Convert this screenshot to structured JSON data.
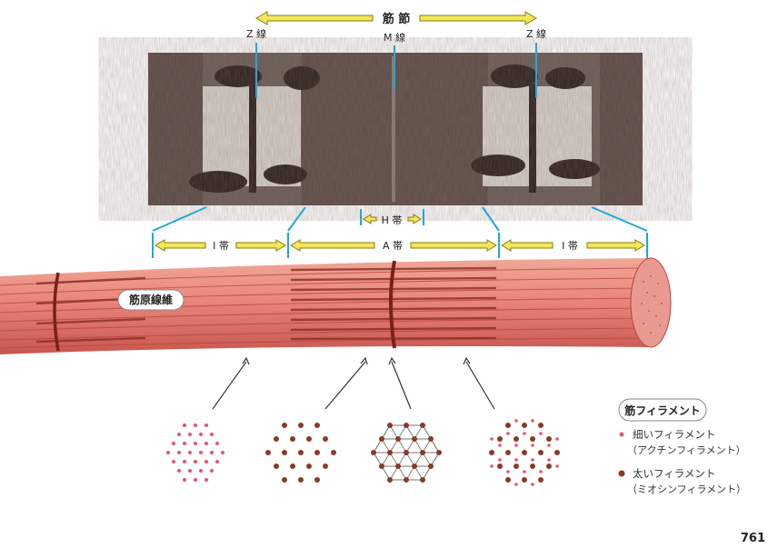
{
  "sarcomere": {
    "label": "筋 節"
  },
  "lines": {
    "z_left": "Z 線",
    "m": "M 線",
    "z_right": "Z 線"
  },
  "bands": {
    "h": "H 帯",
    "i_left": "I 帯",
    "a": "A 帯",
    "i_right": "I 帯"
  },
  "fiber": {
    "label": "筋原線維"
  },
  "legend": {
    "title": "筋フィラメント",
    "thin": "細いフィラメント",
    "thin_sub": "（アクチンフィラメント）",
    "thick": "太いフィラメント",
    "thick_sub": "（ミオシンフィラメント）"
  },
  "colors": {
    "thin": "#e8546d",
    "thick": "#8a3a26",
    "arrow_fill": "#f2e75a",
    "arrow_stroke": "#8a7a10",
    "guide": "#1ea9d8"
  },
  "page": {
    "number": "761"
  }
}
